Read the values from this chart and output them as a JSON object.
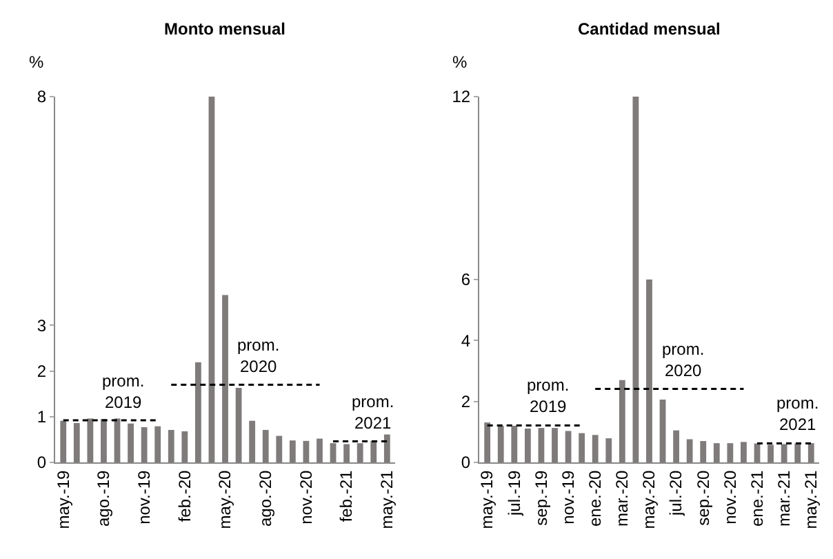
{
  "chart_data": [
    {
      "type": "bar",
      "title": "Monto mensual",
      "ylabel": "%",
      "categories": [
        "may.-19",
        null,
        null,
        "ago.-19",
        null,
        null,
        "nov.-19",
        null,
        null,
        "feb.-20",
        null,
        null,
        "may.-20",
        null,
        null,
        "ago.-20",
        null,
        null,
        "nov.-20",
        null,
        null,
        "feb.-21",
        null,
        null,
        "may.-21"
      ],
      "series": [
        {
          "color": "#7f7b7b",
          "values": [
            0.91,
            0.86,
            0.96,
            0.95,
            0.96,
            0.85,
            0.77,
            0.79,
            0.71,
            0.68,
            2.19,
            8,
            3.66,
            1.63,
            0.91,
            0.71,
            0.58,
            0.48,
            0.47,
            0.52,
            0.42,
            0.4,
            0.42,
            0.47,
            0.61
          ]
        },
        {
          "name": "prom.\n2019",
          "type": "line",
          "color": "#000000",
          "values": [
            0.92,
            0.92,
            0.92,
            0.92,
            0.92,
            0.92,
            0.92,
            0.92,
            null,
            null,
            null,
            null,
            null,
            null,
            null,
            null,
            null,
            null,
            null,
            null,
            null,
            null,
            null,
            null,
            null
          ]
        },
        {
          "name": "prom.\n2020",
          "type": "line",
          "color": "#000000",
          "values": [
            null,
            null,
            null,
            null,
            null,
            null,
            null,
            null,
            1.7,
            1.7,
            1.7,
            1.7,
            1.7,
            1.7,
            1.7,
            1.7,
            1.7,
            1.7,
            1.7,
            1.7,
            null,
            null,
            null,
            null,
            null
          ]
        },
        {
          "name": "prom.\n2021",
          "type": "line",
          "color": "#000000",
          "values": [
            null,
            null,
            null,
            null,
            null,
            null,
            null,
            null,
            null,
            null,
            null,
            null,
            null,
            null,
            null,
            null,
            null,
            null,
            null,
            null,
            0.46,
            0.46,
            0.46,
            0.46,
            0.46
          ]
        }
      ],
      "line_style": "dashed",
      "ylim": [
        0,
        8
      ],
      "yticks": [
        0,
        1,
        2,
        3,
        8
      ]
    },
    {
      "type": "bar",
      "title": "Cantidad mensual",
      "ylabel": "%",
      "categories": [
        "may.-19",
        null,
        "jul.-19",
        null,
        "sep.-19",
        null,
        "nov.-19",
        null,
        "ene.-20",
        null,
        "mar.-20",
        null,
        "may.-20",
        null,
        "jul.-20",
        null,
        "sep.-20",
        null,
        "nov.-20",
        null,
        "ene.-21",
        null,
        "mar.-21",
        null,
        "may.-21"
      ],
      "series": [
        {
          "color": "#7f7b7b",
          "values": [
            1.31,
            1.2,
            1.2,
            1.11,
            1.13,
            1.13,
            1.03,
            0.96,
            0.9,
            0.79,
            2.7,
            12,
            6.0,
            2.06,
            1.05,
            0.76,
            0.7,
            0.63,
            0.63,
            0.67,
            0.62,
            0.58,
            0.6,
            0.62,
            0.63
          ]
        },
        {
          "name": "prom.\n2019",
          "type": "line",
          "color": "#000000",
          "values": [
            1.21,
            1.21,
            1.21,
            1.21,
            1.21,
            1.21,
            1.21,
            1.21,
            null,
            null,
            null,
            null,
            null,
            null,
            null,
            null,
            null,
            null,
            null,
            null,
            null,
            null,
            null,
            null,
            null
          ]
        },
        {
          "name": "prom.\n2020",
          "type": "line",
          "color": "#000000",
          "values": [
            null,
            null,
            null,
            null,
            null,
            null,
            null,
            null,
            2.41,
            2.41,
            2.41,
            2.41,
            2.41,
            2.41,
            2.41,
            2.41,
            2.41,
            2.41,
            2.41,
            2.41,
            null,
            null,
            null,
            null,
            null
          ]
        },
        {
          "name": "prom.\n2021",
          "type": "line",
          "color": "#000000",
          "values": [
            null,
            null,
            null,
            null,
            null,
            null,
            null,
            null,
            null,
            null,
            null,
            null,
            null,
            null,
            null,
            null,
            null,
            null,
            null,
            null,
            0.62,
            0.62,
            0.62,
            0.62,
            0.62
          ]
        }
      ],
      "line_style": "dashed",
      "ylim": [
        0,
        12
      ],
      "yticks": [
        0,
        2,
        4,
        6,
        12
      ]
    }
  ]
}
